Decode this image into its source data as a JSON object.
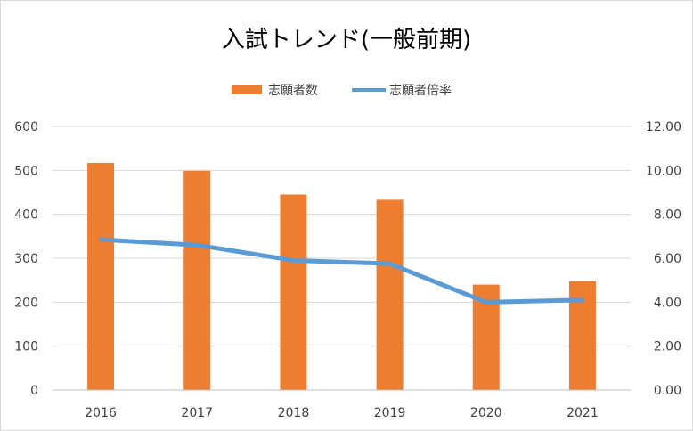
{
  "chart_data": {
    "type": "bar",
    "title": "入試トレンド(一般前期)",
    "categories": [
      "2016",
      "2017",
      "2018",
      "2019",
      "2020",
      "2021"
    ],
    "series": [
      {
        "name": "志願者数",
        "type": "bar",
        "axis": "left",
        "color": "#ed7d31",
        "values": [
          517,
          499,
          445,
          433,
          240,
          248
        ]
      },
      {
        "name": "志願者倍率",
        "type": "line",
        "axis": "right",
        "color": "#5b9bd5",
        "values": [
          6.85,
          6.6,
          5.9,
          5.75,
          4.0,
          4.1
        ]
      }
    ],
    "ylim": [
      0,
      600
    ],
    "y2lim": [
      0,
      12
    ],
    "yticks": [
      "0",
      "100",
      "200",
      "300",
      "400",
      "500",
      "600"
    ],
    "y2ticks": [
      "0.00",
      "2.00",
      "4.00",
      "6.00",
      "8.00",
      "10.00",
      "12.00"
    ],
    "xlabel": "",
    "ylabel": "",
    "grid": true,
    "legend_position": "top"
  }
}
